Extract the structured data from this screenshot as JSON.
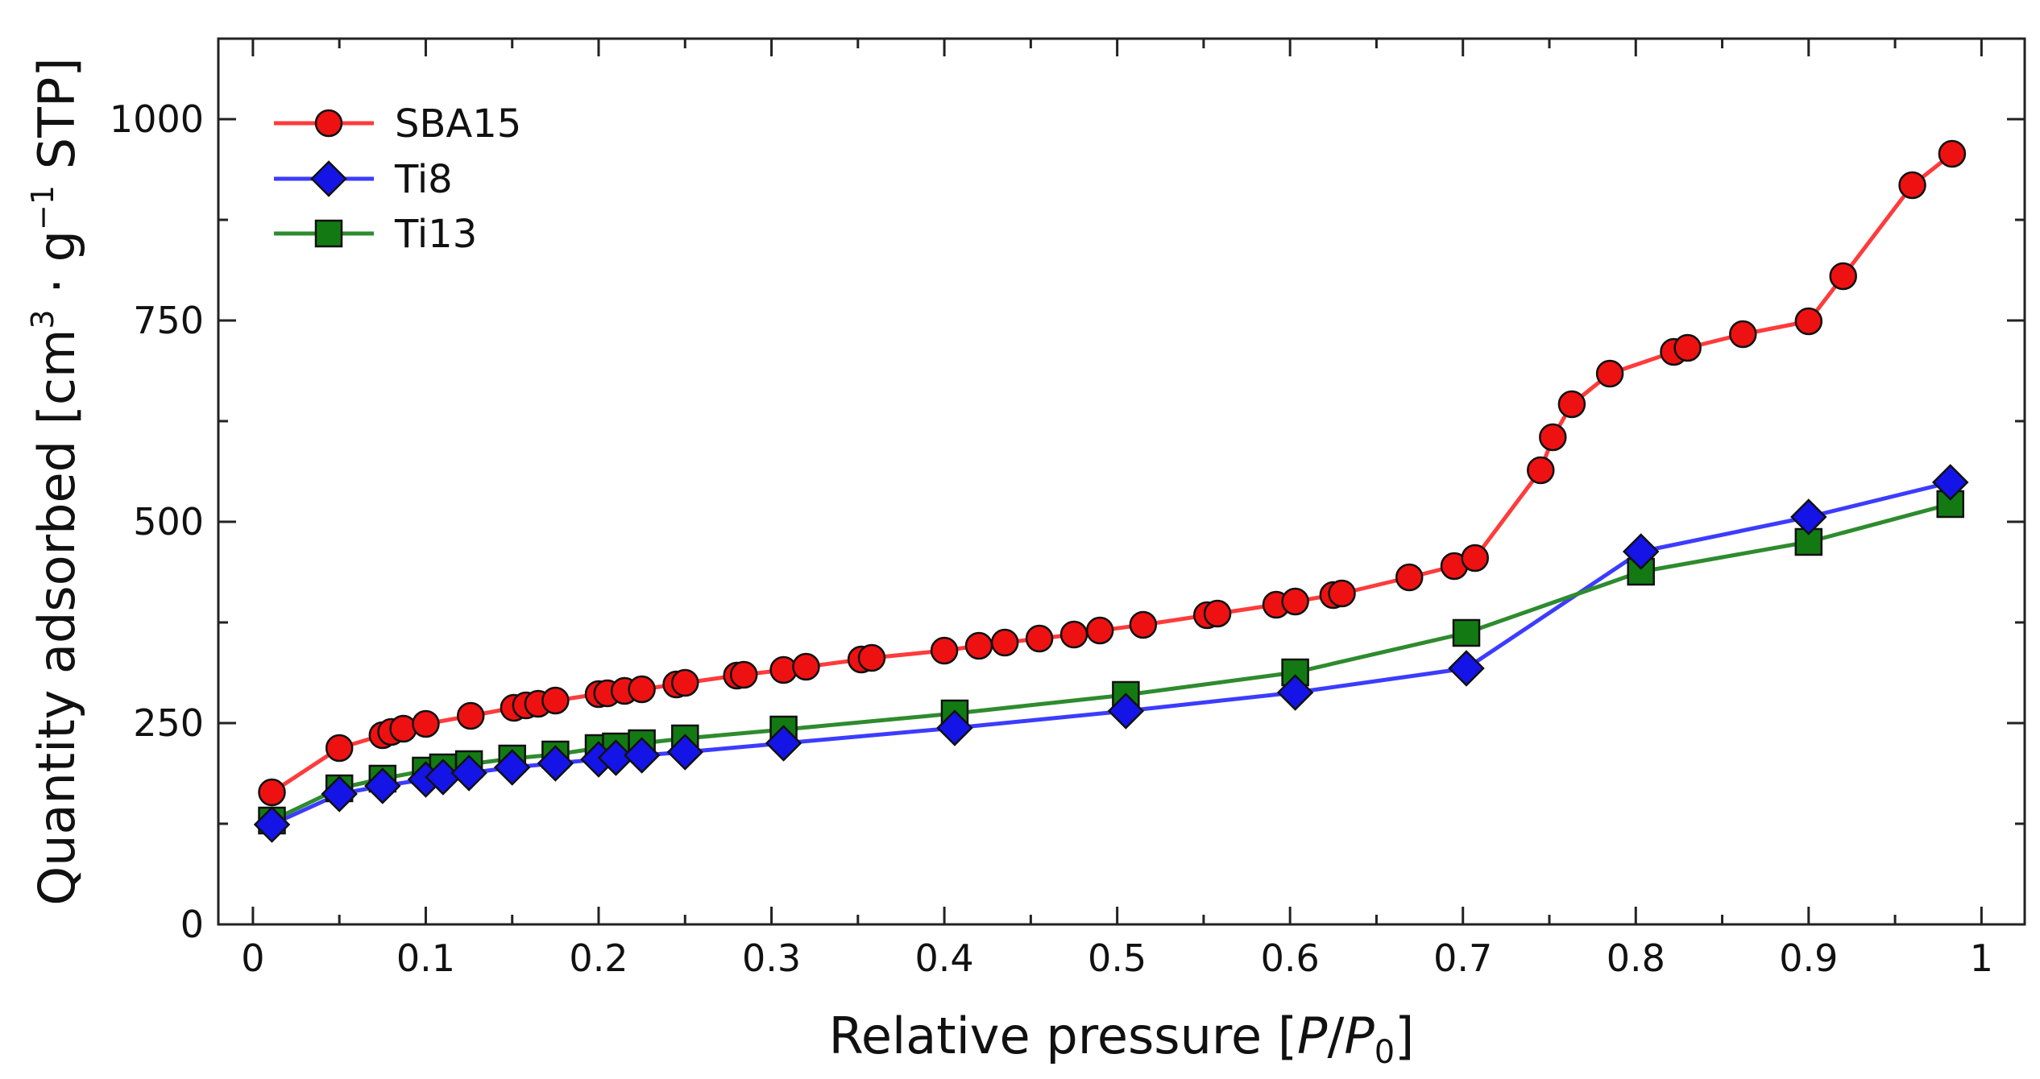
{
  "chart_data": {
    "type": "line",
    "title": "",
    "xlabel": "Relative pressure [P/P0]",
    "xlabel_parts": {
      "prefix": "Relative pressure [",
      "p": "P",
      "slash": "/",
      "p0": "P",
      "sub": "0",
      "suffix": "]"
    },
    "ylabel": "Quantity adsorbed [cm3 · g−1 STP]",
    "ylabel_parts": {
      "a": "Quantity adsorbed [cm",
      "sup1": "3",
      "dot": " · ",
      "b": "g",
      "sup2": "−1",
      "c": " STP]"
    },
    "xlim": [
      -0.02,
      1.025
    ],
    "ylim": [
      0,
      1100
    ],
    "x_ticks": [
      0,
      0.1,
      0.2,
      0.3,
      0.4,
      0.5,
      0.6,
      0.7,
      0.8,
      0.9,
      1
    ],
    "x_tick_labels": [
      "0",
      "0.1",
      "0.2",
      "0.3",
      "0.4",
      "0.5",
      "0.6",
      "0.7",
      "0.8",
      "0.9",
      "1"
    ],
    "y_ticks": [
      0,
      250,
      500,
      750,
      1000
    ],
    "y_tick_labels": [
      "0",
      "250",
      "500",
      "750",
      "1000"
    ],
    "grid": false,
    "legend_position": "top-left",
    "series": [
      {
        "name": "SBA15",
        "color": "#ff3b3b",
        "marker_fill": "#ee1111",
        "marker": "circle",
        "x": [
          0.011,
          0.05,
          0.075,
          0.08,
          0.087,
          0.1,
          0.126,
          0.151,
          0.158,
          0.165,
          0.175,
          0.2,
          0.205,
          0.215,
          0.225,
          0.245,
          0.25,
          0.28,
          0.284,
          0.307,
          0.32,
          0.352,
          0.358,
          0.4,
          0.42,
          0.435,
          0.455,
          0.475,
          0.49,
          0.515,
          0.552,
          0.558,
          0.592,
          0.603,
          0.625,
          0.63,
          0.669,
          0.695,
          0.707,
          0.745,
          0.752,
          0.763,
          0.785,
          0.822,
          0.83,
          0.862,
          0.9,
          0.92,
          0.96,
          0.983
        ],
        "y": [
          164,
          219,
          235,
          239,
          243,
          249,
          259,
          269,
          272,
          274,
          278,
          286,
          287,
          290,
          292,
          298,
          300,
          309,
          310,
          316,
          320,
          329,
          331,
          340,
          346,
          350,
          355,
          360,
          365,
          372,
          384,
          386,
          397,
          401,
          409,
          411,
          431,
          445,
          455,
          564,
          605,
          646,
          684,
          711,
          716,
          733,
          749,
          805,
          918,
          957
        ]
      },
      {
        "name": "Ti8",
        "color": "#3c3cff",
        "marker_fill": "#1414e6",
        "marker": "diamond",
        "x": [
          0.011,
          0.05,
          0.075,
          0.1,
          0.11,
          0.125,
          0.15,
          0.175,
          0.2,
          0.21,
          0.225,
          0.25,
          0.307,
          0.406,
          0.505,
          0.603,
          0.702,
          0.803,
          0.9,
          0.982
        ],
        "y": [
          124,
          162,
          172,
          180,
          183,
          188,
          195,
          200,
          205,
          207,
          210,
          214,
          225,
          244,
          265,
          288,
          318,
          463,
          506,
          549
        ]
      },
      {
        "name": "Ti13",
        "color": "#2e8b2e",
        "marker_fill": "#137a13",
        "marker": "square",
        "x": [
          0.011,
          0.05,
          0.075,
          0.1,
          0.11,
          0.125,
          0.15,
          0.175,
          0.2,
          0.21,
          0.225,
          0.25,
          0.307,
          0.406,
          0.505,
          0.603,
          0.702,
          0.803,
          0.9,
          0.982
        ],
        "y": [
          129,
          169,
          181,
          191,
          195,
          199,
          206,
          211,
          219,
          221,
          225,
          231,
          242,
          262,
          285,
          313,
          362,
          438,
          475,
          522
        ]
      }
    ]
  }
}
